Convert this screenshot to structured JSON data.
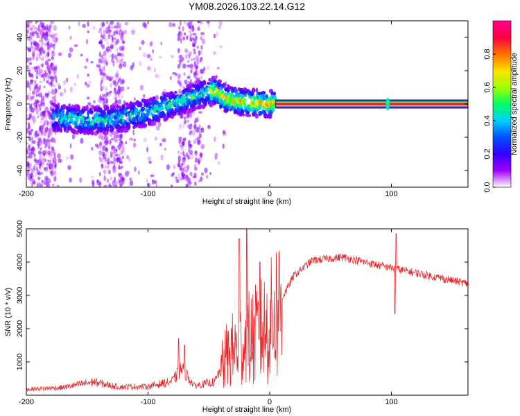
{
  "title": "YM08.2026.103.22.14.G12",
  "colors": {
    "cmap": [
      "#ffffff",
      "#a000ff",
      "#3000ff",
      "#0050ff",
      "#00d0ff",
      "#00ff60",
      "#a0ff00",
      "#ffe000",
      "#ff7000",
      "#ff0040",
      "#ff0090"
    ],
    "snr_line": "#e8262a"
  },
  "chart_data": [
    {
      "type": "heatmap",
      "name": "spectrogram",
      "title": "YM08.2026.103.22.14.G12",
      "xlabel": "Height of straight line (km)",
      "ylabel": "Frequency (Hz)",
      "xlim": [
        -200,
        163
      ],
      "ylim": [
        -50,
        50
      ],
      "xticks": [
        -200,
        -100,
        0,
        100
      ],
      "yticks": [
        -40,
        -20,
        0,
        20,
        40
      ],
      "xtick_labels": [
        "-200",
        "-100",
        "0",
        "100"
      ],
      "ytick_labels": [
        "-40",
        "-20",
        "0",
        "20",
        "40"
      ],
      "ridge": [
        {
          "x": -175,
          "f": -8
        },
        {
          "x": -150,
          "f": -10
        },
        {
          "x": -125,
          "f": -9
        },
        {
          "x": -100,
          "f": -5
        },
        {
          "x": -80,
          "f": 0
        },
        {
          "x": -60,
          "f": 5
        },
        {
          "x": -45,
          "f": 8
        },
        {
          "x": -35,
          "f": 3
        },
        {
          "x": -20,
          "f": 1
        },
        {
          "x": 0,
          "f": 0
        },
        {
          "x": 163,
          "f": 0
        }
      ],
      "line_start_x": 5,
      "spike_x": 97,
      "colorbar": {
        "label": "Normalized spectral amplitude",
        "ticks": [
          0.0,
          0.2,
          0.4,
          0.6,
          0.8
        ],
        "tick_labels": [
          "0.0",
          "0.2",
          "0.4",
          "0.6",
          "0.8"
        ],
        "range": [
          0,
          1
        ]
      }
    },
    {
      "type": "line",
      "name": "snr",
      "xlabel": "Height of straight line (km)",
      "ylabel": "SNR (10 * v/v)",
      "xlim": [
        -200,
        163
      ],
      "ylim": [
        0,
        5000
      ],
      "xticks": [
        -200,
        -100,
        0,
        100
      ],
      "yticks": [
        1000,
        2000,
        3000,
        4000,
        5000
      ],
      "xtick_labels": [
        "-200",
        "-100",
        "0",
        "100"
      ],
      "ytick_labels": [
        "1000",
        "2000",
        "3000",
        "4000",
        "5000"
      ],
      "envelope": [
        {
          "x": -200,
          "y": 180
        },
        {
          "x": -170,
          "y": 230
        },
        {
          "x": -145,
          "y": 400
        },
        {
          "x": -125,
          "y": 250
        },
        {
          "x": -100,
          "y": 260
        },
        {
          "x": -80,
          "y": 420
        },
        {
          "x": -72,
          "y": 800
        },
        {
          "x": -62,
          "y": 280
        },
        {
          "x": -45,
          "y": 400
        },
        {
          "x": -35,
          "y": 1200
        },
        {
          "x": -20,
          "y": 1600
        },
        {
          "x": -10,
          "y": 1800
        },
        {
          "x": 0,
          "y": 2100
        },
        {
          "x": 10,
          "y": 2900
        },
        {
          "x": 20,
          "y": 3600
        },
        {
          "x": 35,
          "y": 4050
        },
        {
          "x": 60,
          "y": 4150
        },
        {
          "x": 90,
          "y": 3900
        },
        {
          "x": 130,
          "y": 3600
        },
        {
          "x": 163,
          "y": 3350
        }
      ],
      "spikes": [
        {
          "x": -75,
          "y": 1700
        },
        {
          "x": -70,
          "y": 1500
        },
        {
          "x": -25,
          "y": 4700
        },
        {
          "x": -19,
          "y": 5000
        },
        {
          "x": -8,
          "y": 4000
        },
        {
          "x": 98,
          "y": 3900
        },
        {
          "x": 104,
          "y": 4850
        },
        {
          "x": 103,
          "y": 2450
        }
      ]
    }
  ]
}
